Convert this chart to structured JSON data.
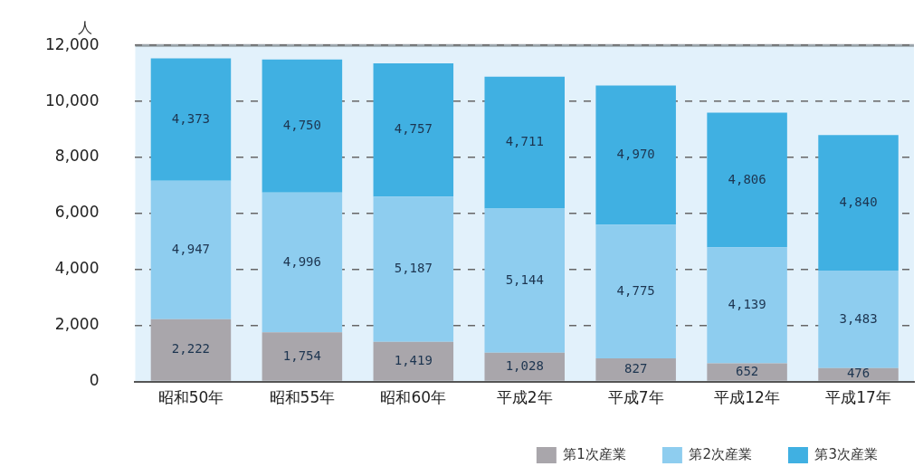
{
  "chart_data": {
    "type": "bar",
    "stacked": true,
    "ylabel": "人",
    "categories": [
      "昭和50年",
      "昭和55年",
      "昭和60年",
      "平成2年",
      "平成7年",
      "平成12年",
      "平成17年"
    ],
    "series": [
      {
        "name": "第1次産業",
        "color": "#a9a6ab",
        "values": [
          2222,
          1754,
          1419,
          1028,
          827,
          652,
          476
        ],
        "value_labels": [
          "2,222",
          "1,754",
          "1,419",
          "1,028",
          "827",
          "652",
          "476"
        ]
      },
      {
        "name": "第2次産業",
        "color": "#8ecdef",
        "values": [
          4947,
          4996,
          5187,
          5144,
          4775,
          4139,
          3483
        ],
        "value_labels": [
          "4,947",
          "4,996",
          "5,187",
          "5,144",
          "4,775",
          "4,139",
          "3,483"
        ]
      },
      {
        "name": "第3次産業",
        "color": "#40b0e2",
        "values": [
          4373,
          4750,
          4757,
          4711,
          4970,
          4806,
          4840
        ],
        "value_labels": [
          "4,373",
          "4,750",
          "4,757",
          "4,711",
          "4,970",
          "4,806",
          "4,840"
        ]
      }
    ],
    "ylim": [
      0,
      12000
    ],
    "yticks": [
      0,
      {
        "value": 2000,
        "label": "2,000"
      },
      {
        "value": 4000,
        "label": "4,000"
      },
      {
        "value": 6000,
        "label": "6,000"
      },
      {
        "value": 8000,
        "label": "8,000"
      },
      {
        "value": 10000,
        "label": "10,000"
      },
      {
        "value": 12000,
        "label": "12,000"
      }
    ],
    "grid": "y",
    "legend": "bottom right"
  }
}
